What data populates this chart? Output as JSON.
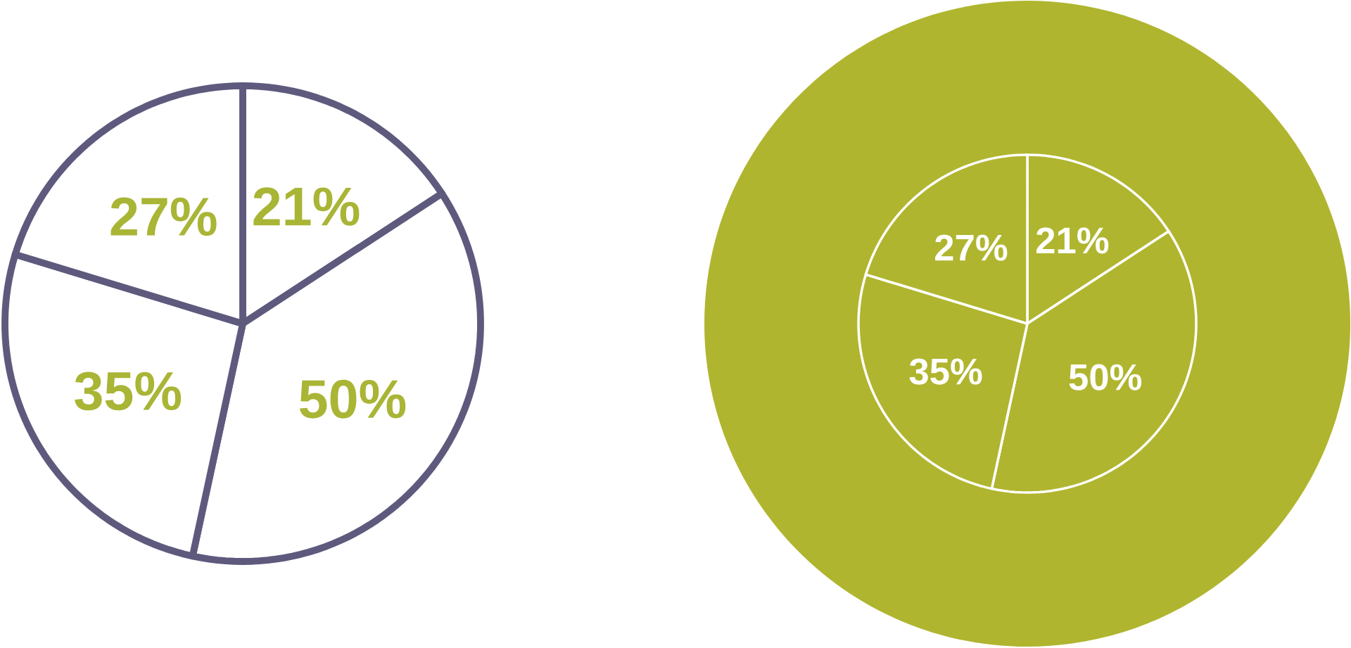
{
  "chart_data": [
    {
      "type": "pie",
      "categories": [
        null,
        null,
        null,
        null
      ],
      "values": [
        21,
        50,
        35,
        27
      ],
      "colors": [
        "#ffffff",
        "#ffffff",
        "#ffffff",
        "#ffffff"
      ],
      "value_labels": [
        "21%",
        "50%",
        "35%",
        "27%"
      ]
    },
    {
      "type": "pie",
      "categories": [
        null,
        null,
        null,
        null
      ],
      "values": [
        21,
        50,
        35,
        27
      ],
      "colors": [
        "#b0b52f",
        "#b0b52f",
        "#b0b52f",
        "#b0b52f"
      ],
      "value_labels": [
        "21%",
        "50%",
        "35%",
        "27%"
      ]
    }
  ]
}
